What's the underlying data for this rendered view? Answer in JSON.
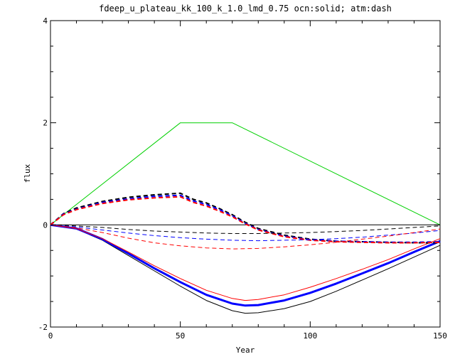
{
  "chart_data": {
    "type": "line",
    "title": "fdeep_u_plateau_kk_100_k_1.0_lmd_0.75 ocn:solid; atm:dash",
    "xlabel": "Year",
    "ylabel": "flux",
    "xlim": [
      0,
      150
    ],
    "ylim": [
      -2,
      4
    ],
    "xticks": [
      0,
      50,
      100,
      150
    ],
    "yticks": [
      -2,
      0,
      2,
      4
    ],
    "xtick_labels": [
      "0",
      "50",
      "100",
      "150"
    ],
    "ytick_labels": [
      "-2",
      "0",
      "2",
      "4"
    ],
    "grid": false,
    "legend": "none",
    "series": [
      {
        "color": "#000000",
        "dash": false,
        "width": 1,
        "x": [
          0,
          150
        ],
        "y": [
          0,
          0
        ]
      },
      {
        "color": "#00d000",
        "dash": false,
        "width": 1,
        "x": [
          0,
          50,
          70,
          150
        ],
        "y": [
          0,
          2.0,
          2.0,
          0.0
        ]
      },
      {
        "color": "#000000",
        "dash": false,
        "width": 1,
        "x": [
          0,
          10,
          20,
          30,
          40,
          50,
          60,
          70,
          75,
          80,
          90,
          100,
          110,
          120,
          130,
          140,
          150
        ],
        "y": [
          0,
          -0.08,
          -0.3,
          -0.6,
          -0.9,
          -1.2,
          -1.48,
          -1.68,
          -1.73,
          -1.72,
          -1.64,
          -1.5,
          -1.3,
          -1.08,
          -0.86,
          -0.63,
          -0.4
        ]
      },
      {
        "color": "#0000ff",
        "dash": false,
        "width": 3,
        "x": [
          0,
          10,
          20,
          30,
          40,
          50,
          60,
          70,
          75,
          80,
          90,
          100,
          110,
          120,
          130,
          140,
          150
        ],
        "y": [
          0,
          -0.07,
          -0.28,
          -0.56,
          -0.85,
          -1.12,
          -1.37,
          -1.54,
          -1.58,
          -1.57,
          -1.48,
          -1.33,
          -1.15,
          -0.95,
          -0.75,
          -0.53,
          -0.32
        ]
      },
      {
        "color": "#ff0000",
        "dash": false,
        "width": 1,
        "x": [
          0,
          10,
          20,
          30,
          40,
          50,
          60,
          70,
          75,
          80,
          90,
          100,
          110,
          120,
          130,
          140,
          150
        ],
        "y": [
          0,
          -0.07,
          -0.27,
          -0.53,
          -0.8,
          -1.05,
          -1.28,
          -1.44,
          -1.48,
          -1.46,
          -1.37,
          -1.22,
          -1.05,
          -0.87,
          -0.68,
          -0.47,
          -0.27
        ]
      },
      {
        "color": "#000000",
        "dash": true,
        "width": 2,
        "x": [
          0,
          5,
          10,
          20,
          30,
          40,
          50,
          55,
          60,
          65,
          70,
          75,
          80,
          90,
          100,
          110,
          120,
          130,
          140,
          150
        ],
        "y": [
          0,
          0.22,
          0.33,
          0.46,
          0.54,
          0.59,
          0.62,
          0.5,
          0.43,
          0.32,
          0.2,
          0.05,
          -0.07,
          -0.2,
          -0.28,
          -0.32,
          -0.33,
          -0.34,
          -0.35,
          -0.35
        ]
      },
      {
        "color": "#0000ff",
        "dash": true,
        "width": 2,
        "x": [
          0,
          5,
          10,
          20,
          30,
          40,
          50,
          55,
          60,
          65,
          70,
          75,
          80,
          90,
          100,
          110,
          120,
          130,
          140,
          150
        ],
        "y": [
          0,
          0.21,
          0.31,
          0.44,
          0.51,
          0.56,
          0.58,
          0.47,
          0.4,
          0.3,
          0.18,
          0.03,
          -0.09,
          -0.22,
          -0.29,
          -0.32,
          -0.33,
          -0.34,
          -0.34,
          -0.33
        ]
      },
      {
        "color": "#ff0000",
        "dash": true,
        "width": 2,
        "x": [
          0,
          5,
          10,
          20,
          30,
          40,
          50,
          55,
          60,
          65,
          70,
          75,
          80,
          90,
          100,
          110,
          120,
          130,
          140,
          150
        ],
        "y": [
          0,
          0.2,
          0.3,
          0.42,
          0.49,
          0.53,
          0.55,
          0.44,
          0.37,
          0.27,
          0.16,
          0.02,
          -0.1,
          -0.23,
          -0.3,
          -0.33,
          -0.34,
          -0.35,
          -0.35,
          -0.34
        ]
      },
      {
        "color": "#000000",
        "dash": true,
        "width": 1,
        "x": [
          0,
          10,
          20,
          30,
          40,
          50,
          60,
          70,
          80,
          90,
          100,
          110,
          120,
          130,
          140,
          150
        ],
        "y": [
          0,
          -0.02,
          -0.05,
          -0.09,
          -0.12,
          -0.14,
          -0.16,
          -0.17,
          -0.17,
          -0.16,
          -0.15,
          -0.13,
          -0.11,
          -0.08,
          -0.05,
          -0.02
        ]
      },
      {
        "color": "#0000ff",
        "dash": true,
        "width": 1,
        "x": [
          0,
          10,
          20,
          30,
          40,
          50,
          60,
          70,
          80,
          90,
          100,
          110,
          120,
          130,
          140,
          150
        ],
        "y": [
          0,
          -0.04,
          -0.1,
          -0.16,
          -0.21,
          -0.25,
          -0.28,
          -0.3,
          -0.31,
          -0.3,
          -0.29,
          -0.27,
          -0.24,
          -0.2,
          -0.16,
          -0.11
        ]
      },
      {
        "color": "#ff0000",
        "dash": true,
        "width": 1,
        "x": [
          0,
          10,
          20,
          30,
          40,
          50,
          60,
          70,
          80,
          90,
          100,
          110,
          120,
          130,
          140,
          150
        ],
        "y": [
          0,
          -0.06,
          -0.15,
          -0.26,
          -0.35,
          -0.41,
          -0.45,
          -0.47,
          -0.46,
          -0.43,
          -0.39,
          -0.34,
          -0.28,
          -0.22,
          -0.15,
          -0.08
        ]
      }
    ]
  }
}
